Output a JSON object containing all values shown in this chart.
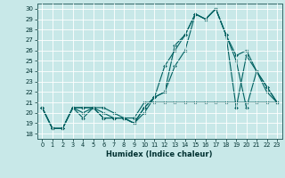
{
  "xlabel": "Humidex (Indice chaleur)",
  "bg_color": "#c8e8e8",
  "grid_color": "#ffffff",
  "line_color": "#006060",
  "xlim": [
    -0.5,
    23.5
  ],
  "ylim": [
    17.5,
    30.5
  ],
  "xticks": [
    0,
    1,
    2,
    3,
    4,
    5,
    6,
    7,
    8,
    9,
    10,
    11,
    12,
    13,
    14,
    15,
    16,
    17,
    18,
    19,
    20,
    21,
    22,
    23
  ],
  "yticks": [
    18,
    19,
    20,
    21,
    22,
    23,
    24,
    25,
    26,
    27,
    28,
    29,
    30
  ],
  "series": [
    [
      20.5,
      18.5,
      18.5,
      20.5,
      20.0,
      20.5,
      19.5,
      19.5,
      19.5,
      19.0,
      20.0,
      21.5,
      22.0,
      24.5,
      26.0,
      29.5,
      29.0,
      30.0,
      27.5,
      20.5,
      25.5,
      24.0,
      22.0,
      21.0
    ],
    [
      20.5,
      18.5,
      18.5,
      20.5,
      19.5,
      20.5,
      19.5,
      19.5,
      19.5,
      19.0,
      20.5,
      21.5,
      22.0,
      26.5,
      27.5,
      29.5,
      29.0,
      30.0,
      27.5,
      25.0,
      20.5,
      24.0,
      22.5,
      21.0
    ],
    [
      20.5,
      18.5,
      18.5,
      20.5,
      20.5,
      20.5,
      20.0,
      19.5,
      19.5,
      19.0,
      20.5,
      21.5,
      24.5,
      26.0,
      27.5,
      29.5,
      29.0,
      30.0,
      27.5,
      25.5,
      26.0,
      24.0,
      22.5,
      21.0
    ],
    [
      20.5,
      18.5,
      18.5,
      20.5,
      20.5,
      20.5,
      20.5,
      20.0,
      19.5,
      19.5,
      21.0,
      21.0,
      21.0,
      21.0,
      21.0,
      21.0,
      21.0,
      21.0,
      21.0,
      21.0,
      21.0,
      21.0,
      21.0,
      21.0
    ]
  ]
}
